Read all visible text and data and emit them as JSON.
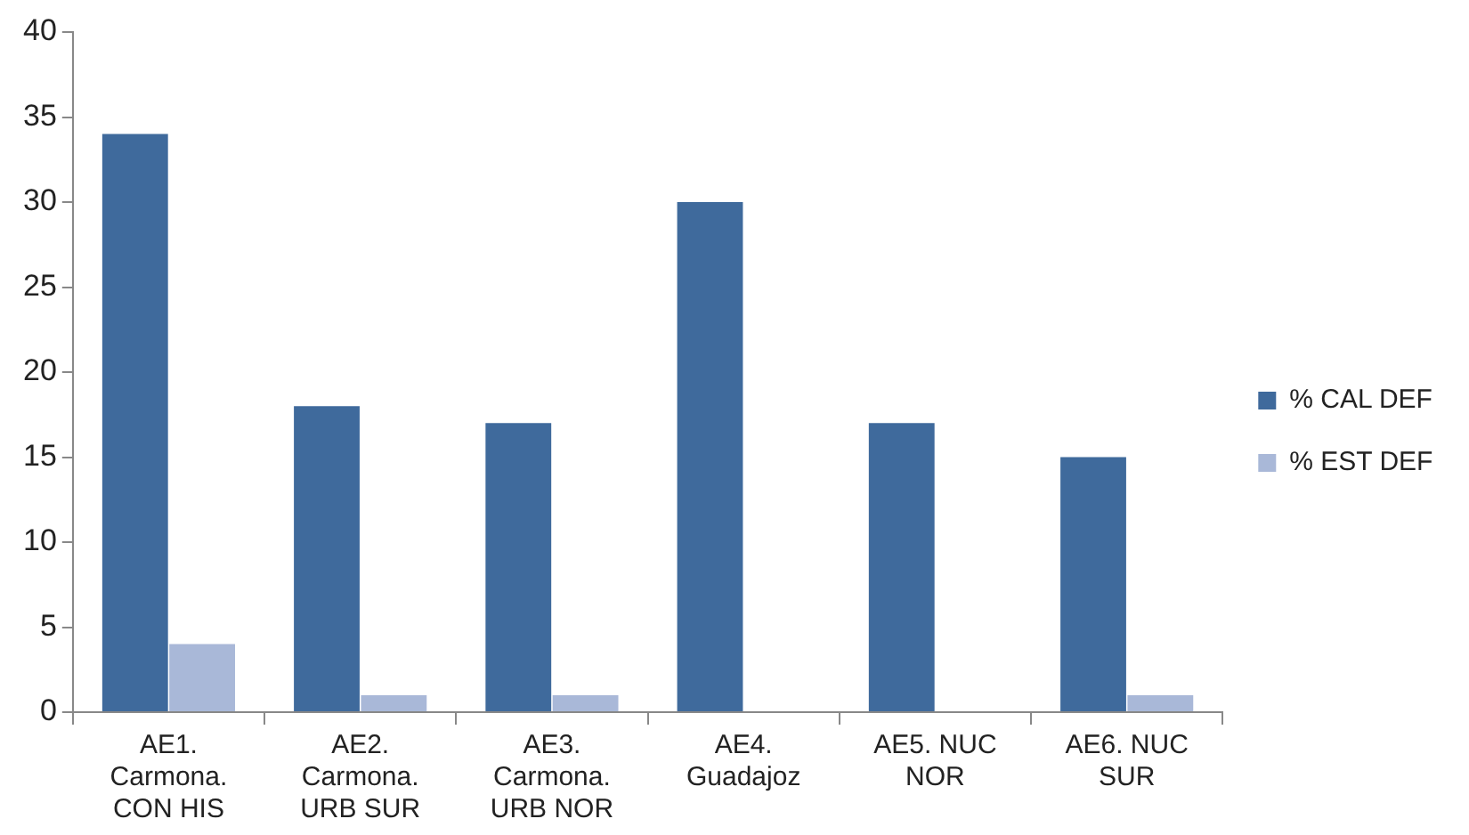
{
  "chart_data": {
    "type": "bar",
    "categories": [
      "AE1. Carmona. CON HIS",
      "AE2. Carmona. URB SUR",
      "AE3. Carmona. URB NOR",
      "AE4. Guadajoz",
      "AE5. NUC NOR",
      "AE6. NUC SUR"
    ],
    "series": [
      {
        "name": "% CAL DEF",
        "color": "#3f6a9c",
        "values": [
          34,
          18,
          17,
          30,
          17,
          15
        ]
      },
      {
        "name": "% EST DEF",
        "color": "#a9b8d8",
        "values": [
          4,
          1,
          1,
          0,
          0,
          1
        ]
      }
    ],
    "ylim": [
      0,
      40
    ],
    "yticks": [
      0,
      5,
      10,
      15,
      20,
      25,
      30,
      35,
      40
    ],
    "grid": false,
    "legend": "right"
  }
}
